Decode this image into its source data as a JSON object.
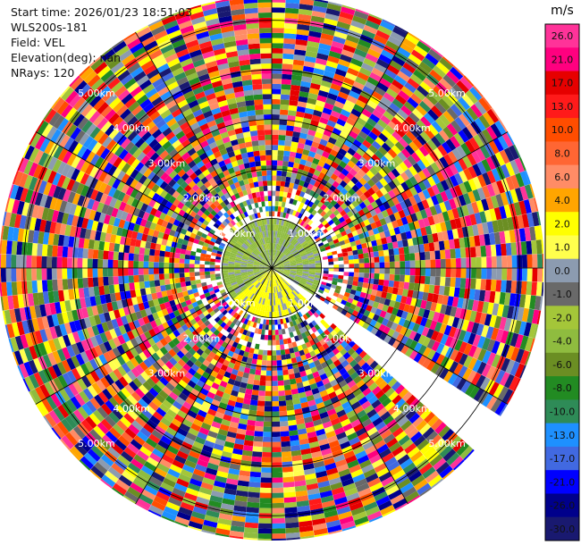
{
  "header": {
    "start_time": "Start time: 2026/01/23 18:51:03",
    "instrument": "WLS200s-181",
    "field": "Field: VEL",
    "elevation": "Elevation(deg): nan",
    "nrays": "NRays: 120"
  },
  "chart_data": {
    "type": "heatmap",
    "subtype": "polar-ppi",
    "field": "VEL",
    "units": "m/s",
    "n_rays": 120,
    "range_labels": [
      "1.00km",
      "2.00km",
      "3.00km",
      "4.00km",
      "5.00km"
    ],
    "range_max_km": 5.5,
    "colorbar": {
      "units_label": "m/s",
      "ticks": [
        "26.0",
        "21.0",
        "17.0",
        "13.0",
        "10.0",
        "8.0",
        "6.0",
        "4.0",
        "2.0",
        "1.0",
        "0.0",
        "-1.0",
        "-2.0",
        "-4.0",
        "-6.0",
        "-8.0",
        "-10.0",
        "-13.0",
        "-17.0",
        "-21.0",
        "-26.0",
        "-30.0"
      ],
      "colors": [
        "#ff3399",
        "#ff007f",
        "#e60000",
        "#ff1a1a",
        "#ff4d00",
        "#ff6633",
        "#ff8c66",
        "#ffa500",
        "#ffff00",
        "#ffff4d",
        "#8c9bb0",
        "#696969",
        "#a4c639",
        "#8fbc3f",
        "#6b8e23",
        "#228b22",
        "#2e8b57",
        "#1e90ff",
        "#4169e1",
        "#0000ff",
        "#00008b",
        "#191970"
      ]
    }
  }
}
